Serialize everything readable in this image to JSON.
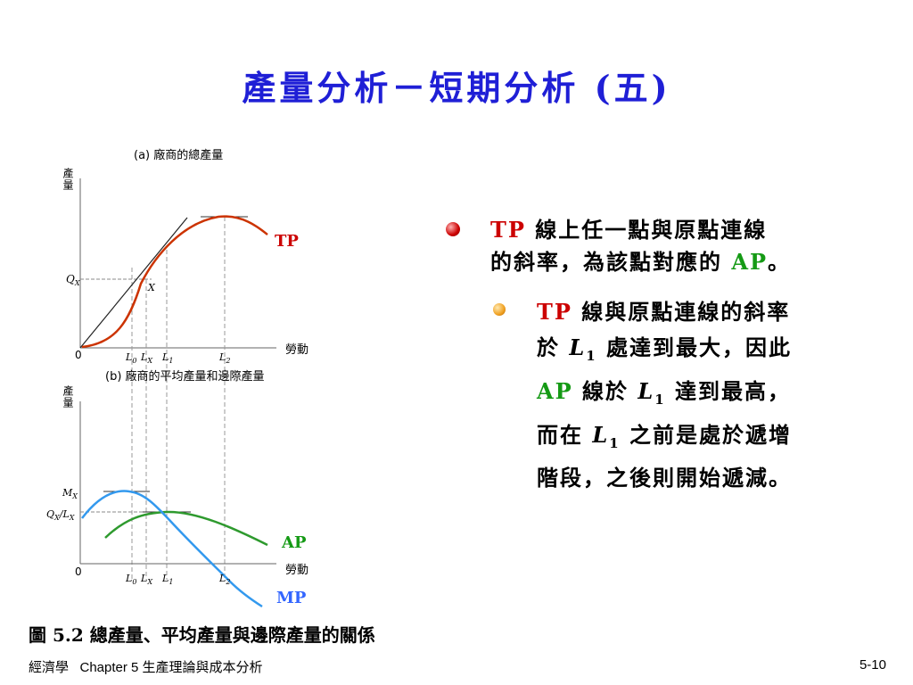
{
  "slide": {
    "title": "產量分析－短期分析 (五)",
    "caption": "圖 5.2 總產量、平均產量與邊際產量的關係",
    "footer_left": "經濟學   Chapter 5 生產理論與成本分析",
    "page_number": "5-10"
  },
  "figure_a": {
    "title": "(a) 廠商的總產量",
    "y_label": "產量",
    "x_label": "勞動",
    "origin": "0",
    "qx_label": "Q",
    "qx_sub": "X",
    "point_label": "X",
    "tick_l0": "L",
    "tick_l0_sub": "0",
    "tick_lx": "L",
    "tick_lx_sub": "X",
    "tick_l1": "L",
    "tick_l1_sub": "1",
    "tick_l2": "L",
    "tick_l2_sub": "2",
    "curve_label": "TP"
  },
  "figure_b": {
    "title": "(b) 廠商的平均產量和邊際產量",
    "y_label": "產量",
    "x_label": "勞動",
    "origin": "0",
    "mx_label": "M",
    "mx_sub": "X",
    "qlx_label": "Q",
    "qlx_sub": "X",
    "qlx_mid": "/L",
    "qlx_sub2": "X",
    "tick_l0": "L",
    "tick_l0_sub": "0",
    "tick_lx": "L",
    "tick_lx_sub": "X",
    "tick_l1": "L",
    "tick_l1_sub": "1",
    "tick_l2": "L",
    "tick_l2_sub": "2",
    "ap_label": "AP",
    "mp_label": "MP"
  },
  "bullets": {
    "b1_tp": "TP",
    "b1_text1": " 線上任一點與原點連線",
    "b1_text2": "的斜率，為該點對應的 ",
    "b1_ap": "AP",
    "b1_end": "。",
    "b2_tp": "TP",
    "b2_text1": " 線與原點連線的斜率",
    "b2_text2a": "於 ",
    "b2_l": "L",
    "b2_l_sub": "1",
    "b2_text2b": " 處達到最大，因此",
    "b2_ap": "AP",
    "b2_text3a": " 線於 ",
    "b2_l2": "L",
    "b2_l2_sub": "1",
    "b2_text3b": " 達到最高，",
    "b2_text4a": "而在 ",
    "b2_l3": "L",
    "b2_l3_sub": "1",
    "b2_text4b": " 之前是處於遞增",
    "b2_text5": "階段，之後則開始遞減。"
  },
  "colors": {
    "title": "#1f1fd6",
    "tp": "#cc3300",
    "ap": "#2e9a2e",
    "mp": "#3399ee",
    "accent_red": "#cc0000",
    "accent_green": "#159a15"
  }
}
